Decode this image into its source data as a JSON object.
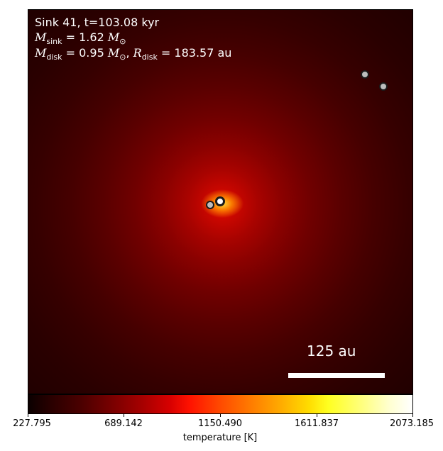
{
  "annotation": {
    "sink_label": "Sink 41, t=103.08 kyr",
    "m_sink_symbol": "M",
    "m_sink_sub": "sink",
    "m_sink_value": "= 1.62",
    "m_disk_symbol": "M",
    "m_disk_sub": "disk",
    "m_disk_value": "= 0.95",
    "r_disk_symbol": "R",
    "r_disk_sub": "disk",
    "r_disk_value": "= 183.57 au",
    "solar_mass_unit": "M",
    "solar_mass_sub": "⊙"
  },
  "scalebar": {
    "label": "125 au"
  },
  "colorbar": {
    "label": "temperature [K]",
    "ticks": [
      "227.795",
      "689.142",
      "1150.490",
      "1611.837",
      "2073.185"
    ],
    "colormap": "hot",
    "min": 227.795,
    "max": 2073.185
  },
  "sinks": [
    {
      "name": "primary",
      "fill": "#ffffff"
    },
    {
      "name": "companion",
      "fill": "#bdbdbd"
    },
    {
      "name": "outer-1",
      "fill": "#bdbdbd"
    },
    {
      "name": "outer-2",
      "fill": "#bdbdbd"
    }
  ]
}
